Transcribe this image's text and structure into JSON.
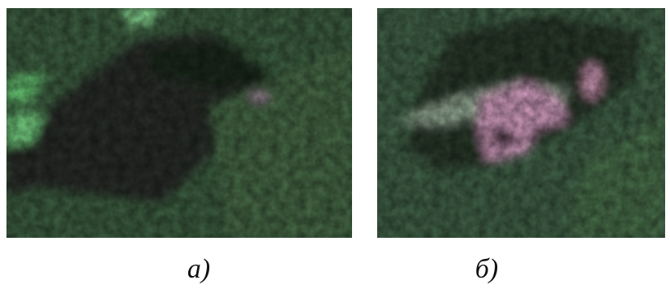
{
  "figures": [
    {
      "label": "а)"
    },
    {
      "label": "б)"
    }
  ]
}
